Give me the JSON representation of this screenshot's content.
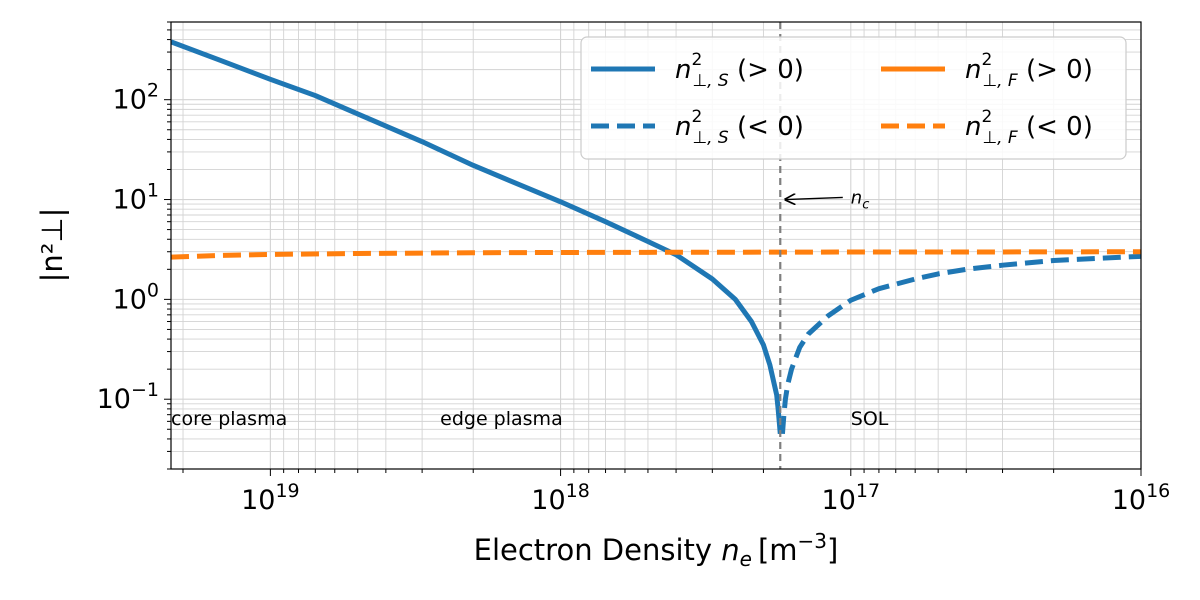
{
  "chart_data": {
    "type": "line",
    "xlabel_prefix": "Electron Density ",
    "xlabel_var": "n",
    "xlabel_var_sub": "e",
    "xlabel_unit": "[m",
    "xlabel_unit_sup": "−3",
    "xlabel_unit_close": "]",
    "ylabel": "|n²⊥|",
    "x_scale": "log",
    "x_inverted": true,
    "y_scale": "log",
    "xlim": [
      2.2e+19,
      1e+16
    ],
    "ylim": [
      0.02,
      600
    ],
    "grid": true,
    "legend_position": "upper-right",
    "x_ticks": [
      {
        "value": 1e+19,
        "base": "10",
        "exp": "19"
      },
      {
        "value": 1e+18,
        "base": "10",
        "exp": "18"
      },
      {
        "value": 1e+17,
        "base": "10",
        "exp": "17"
      },
      {
        "value": 1e+16,
        "base": "10",
        "exp": "16"
      }
    ],
    "y_ticks": [
      {
        "value": 0.1,
        "base": "10",
        "exp": "−1"
      },
      {
        "value": 1,
        "base": "10",
        "exp": "0"
      },
      {
        "value": 10,
        "base": "10",
        "exp": "1"
      },
      {
        "value": 100,
        "base": "10",
        "exp": "2"
      }
    ],
    "series": [
      {
        "name": "n²⊥,S (>0)",
        "legend_math": "n",
        "legend_sup": "2",
        "legend_sub": "⊥, S",
        "legend_cond": " (> 0)",
        "color": "#1f77b4",
        "style": "solid",
        "x": [
          2.2e+19,
          1.5e+19,
          1e+19,
          7e+18,
          5e+18,
          3e+18,
          2e+18,
          1.5e+18,
          1e+18,
          7e+17,
          5e+17,
          4e+17,
          3e+17,
          2.5e+17,
          2.2e+17,
          2e+17,
          1.9e+17,
          1.8e+17,
          1.78e+17,
          1.76e+17,
          1.75e+17
        ],
        "y": [
          380,
          250,
          160,
          110,
          72,
          38,
          22,
          15.5,
          9.5,
          6.0,
          3.8,
          2.8,
          1.6,
          1.0,
          0.6,
          0.35,
          0.22,
          0.11,
          0.08,
          0.055,
          0.045
        ]
      },
      {
        "name": "n²⊥,S (<0)",
        "legend_math": "n",
        "legend_sup": "2",
        "legend_sub": "⊥, S",
        "legend_cond": " (< 0)",
        "color": "#1f77b4",
        "style": "dashed",
        "x": [
          1.72e+17,
          1.7e+17,
          1.68e+17,
          1.65e+17,
          1.6e+17,
          1.5e+17,
          1.4e+17,
          1.2e+17,
          1e+17,
          8e+16,
          6e+16,
          5e+16,
          4e+16,
          3e+16,
          2e+16,
          1.5e+16,
          1e+16
        ],
        "y": [
          0.045,
          0.07,
          0.1,
          0.14,
          0.2,
          0.33,
          0.45,
          0.68,
          0.98,
          1.28,
          1.6,
          1.8,
          2.0,
          2.2,
          2.45,
          2.55,
          2.7
        ]
      },
      {
        "name": "n²⊥,F (>0)",
        "legend_math": "n",
        "legend_sup": "2",
        "legend_sub": "⊥, F",
        "legend_cond": " (> 0)",
        "color": "#ff7f0e",
        "style": "solid",
        "x": [],
        "y": []
      },
      {
        "name": "n²⊥,F (<0)",
        "legend_math": "n",
        "legend_sup": "2",
        "legend_sub": "⊥, F",
        "legend_cond": " (< 0)",
        "color": "#ff7f0e",
        "style": "dashed",
        "x": [
          2.2e+19,
          1.5e+19,
          1e+19,
          5e+18,
          2e+18,
          1e+18,
          5e+17,
          2e+17,
          1e+17,
          5e+16,
          2e+16,
          1e+16
        ],
        "y": [
          2.65,
          2.75,
          2.82,
          2.88,
          2.93,
          2.95,
          2.96,
          2.97,
          2.98,
          2.98,
          2.99,
          3.0
        ]
      }
    ],
    "vline": {
      "x": 1.75e+17,
      "color": "#7f7f7f",
      "style": "dashed"
    },
    "annotations": [
      {
        "text": "n",
        "sub": "c",
        "x_text": 1e+17,
        "y_text": 10.5,
        "x_arrow": 1.68e+17,
        "y_arrow": 10
      }
    ],
    "region_labels": [
      {
        "text": "core plasma",
        "x": 2.2e+19,
        "y": 0.055
      },
      {
        "text": "edge plasma",
        "x": 2.6e+18,
        "y": 0.055
      },
      {
        "text": "SOL",
        "x": 1e+17,
        "y": 0.055
      }
    ]
  }
}
